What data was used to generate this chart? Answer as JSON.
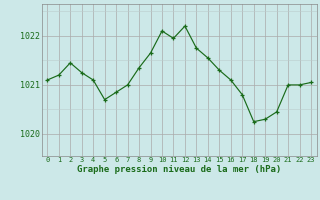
{
  "hours": [
    0,
    1,
    2,
    3,
    4,
    5,
    6,
    7,
    8,
    9,
    10,
    11,
    12,
    13,
    14,
    15,
    16,
    17,
    18,
    19,
    20,
    21,
    22,
    23
  ],
  "pressure": [
    1021.1,
    1021.2,
    1021.45,
    1021.25,
    1021.1,
    1020.7,
    1020.85,
    1021.0,
    1021.35,
    1021.65,
    1022.1,
    1021.95,
    1022.2,
    1021.75,
    1021.55,
    1021.3,
    1021.1,
    1020.8,
    1020.25,
    1020.3,
    1020.45,
    1021.0,
    1021.0,
    1021.05
  ],
  "line_color": "#1a6b1a",
  "marker": "+",
  "bg_color": "#cce8e8",
  "grid_color_major": "#aaaaaa",
  "grid_color_minor": "#bbcccc",
  "xlabel": "Graphe pression niveau de la mer (hPa)",
  "xlabel_color": "#1a6b1a",
  "ytick_labels": [
    "1020",
    "1021",
    "1022"
  ],
  "ytick_values": [
    1020,
    1021,
    1022
  ],
  "ylim": [
    1019.55,
    1022.65
  ],
  "xlim": [
    -0.5,
    23.5
  ],
  "xtick_labels": [
    "0",
    "1",
    "2",
    "3",
    "4",
    "5",
    "6",
    "7",
    "8",
    "9",
    "10",
    "11",
    "12",
    "13",
    "14",
    "15",
    "16",
    "17",
    "18",
    "19",
    "20",
    "21",
    "22",
    "23"
  ]
}
